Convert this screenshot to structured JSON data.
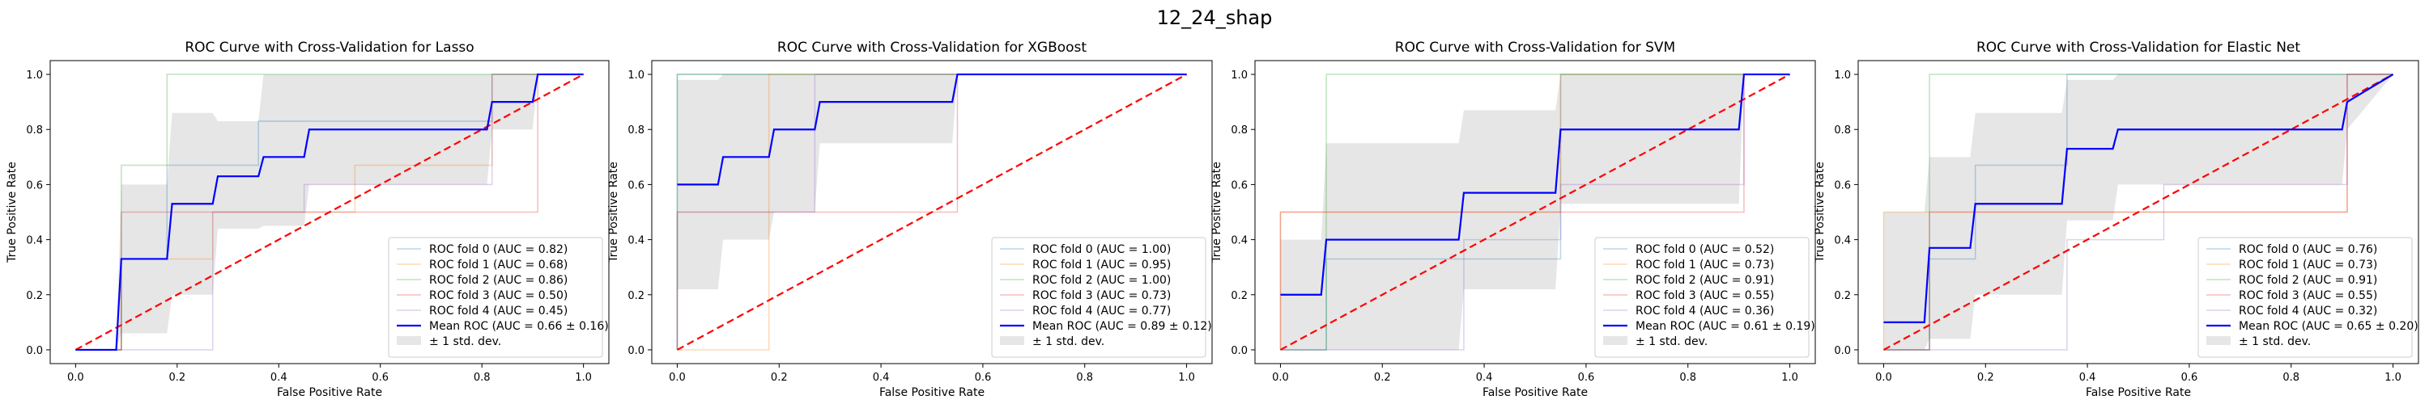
{
  "figure_title": "12_24_shap",
  "chart_data": [
    {
      "type": "line",
      "title": "ROC Curve with Cross-Validation for Lasso",
      "xlabel": "False Positive Rate",
      "ylabel": "True Positive Rate",
      "xlim": [
        -0.05,
        1.05
      ],
      "ylim": [
        -0.05,
        1.05
      ],
      "xticks": [
        "0.0",
        "0.2",
        "0.4",
        "0.6",
        "0.8",
        "1.0"
      ],
      "yticks": [
        "0.0",
        "0.2",
        "0.4",
        "0.6",
        "0.8",
        "1.0"
      ],
      "legend_position": "lower-right",
      "folds": [
        {
          "name": "ROC fold 0 (AUC = 0.82)",
          "color": "#1f77b4",
          "x": [
            0,
            0.09,
            0.09,
            0.18,
            0.18,
            0.36,
            0.36,
            0.82,
            0.82,
            1.0
          ],
          "y": [
            0,
            0,
            0.33,
            0.33,
            0.67,
            0.67,
            0.83,
            0.83,
            1.0,
            1.0
          ]
        },
        {
          "name": "ROC fold 1 (AUC = 0.68)",
          "color": "#ff7f0e",
          "x": [
            0,
            0.09,
            0.09,
            0.27,
            0.27,
            0.55,
            0.55,
            0.82,
            0.82,
            1.0
          ],
          "y": [
            0,
            0,
            0.33,
            0.33,
            0.5,
            0.5,
            0.67,
            0.67,
            1.0,
            1.0
          ]
        },
        {
          "name": "ROC fold 2 (AUC = 0.86)",
          "color": "#2ca02c",
          "x": [
            0,
            0.09,
            0.09,
            0.18,
            0.18,
            1.0
          ],
          "y": [
            0,
            0,
            0.67,
            0.67,
            1.0,
            1.0
          ]
        },
        {
          "name": "ROC fold 3 (AUC = 0.50)",
          "color": "#d62728",
          "x": [
            0,
            0.09,
            0.09,
            0.45,
            0.45,
            0.91,
            0.91,
            1.0
          ],
          "y": [
            0,
            0,
            0.5,
            0.5,
            0.5,
            0.5,
            1.0,
            1.0
          ]
        },
        {
          "name": "ROC fold 4 (AUC = 0.45)",
          "color": "#9467bd",
          "x": [
            0,
            0.27,
            0.27,
            0.45,
            0.45,
            0.82,
            0.82,
            1.0
          ],
          "y": [
            0,
            0,
            0.5,
            0.5,
            0.6,
            0.6,
            1.0,
            1.0
          ]
        }
      ],
      "mean": {
        "name": "Mean ROC (AUC = 0.66 ± 0.16)",
        "color": "#0000ff",
        "x": [
          0,
          0.08,
          0.09,
          0.18,
          0.19,
          0.27,
          0.28,
          0.36,
          0.37,
          0.45,
          0.46,
          0.81,
          0.82,
          0.9,
          0.91,
          1.0
        ],
        "y": [
          0,
          0,
          0.33,
          0.33,
          0.53,
          0.53,
          0.63,
          0.63,
          0.7,
          0.7,
          0.8,
          0.8,
          0.9,
          0.9,
          1.0,
          1.0
        ]
      },
      "band": {
        "name": "± 1 std. dev.",
        "color": "#808080",
        "x": [
          0,
          0.08,
          0.09,
          0.18,
          0.19,
          0.27,
          0.28,
          0.36,
          0.37,
          0.45,
          0.46,
          0.81,
          0.82,
          0.9,
          0.91,
          1.0
        ],
        "upper": [
          0,
          0,
          0.6,
          0.6,
          0.86,
          0.86,
          0.83,
          0.83,
          1.0,
          1.0,
          1.0,
          1.0,
          1.0,
          1.0,
          1.0,
          1.0
        ],
        "lower": [
          0,
          0,
          0.06,
          0.06,
          0.2,
          0.2,
          0.44,
          0.44,
          0.45,
          0.45,
          0.6,
          0.6,
          0.8,
          0.8,
          1.0,
          1.0
        ]
      },
      "chance": {
        "x": [
          0,
          1
        ],
        "y": [
          0,
          1
        ],
        "color": "#ff0000"
      }
    },
    {
      "type": "line",
      "title": "ROC Curve with Cross-Validation for XGBoost",
      "xlabel": "False Positive Rate",
      "ylabel": "True Positive Rate",
      "xlim": [
        -0.05,
        1.05
      ],
      "ylim": [
        -0.05,
        1.05
      ],
      "xticks": [
        "0.0",
        "0.2",
        "0.4",
        "0.6",
        "0.8",
        "1.0"
      ],
      "yticks": [
        "0.0",
        "0.2",
        "0.4",
        "0.6",
        "0.8",
        "1.0"
      ],
      "legend_position": "lower-right",
      "folds": [
        {
          "name": "ROC fold 0 (AUC = 1.00)",
          "color": "#1f77b4",
          "x": [
            0,
            0,
            1.0
          ],
          "y": [
            0,
            1.0,
            1.0
          ]
        },
        {
          "name": "ROC fold 1 (AUC = 0.95)",
          "color": "#ff7f0e",
          "x": [
            0,
            0.18,
            0.18,
            1.0
          ],
          "y": [
            0,
            0,
            1.0,
            1.0
          ]
        },
        {
          "name": "ROC fold 2 (AUC = 1.00)",
          "color": "#2ca02c",
          "x": [
            0,
            0,
            1.0
          ],
          "y": [
            0,
            1.0,
            1.0
          ]
        },
        {
          "name": "ROC fold 3 (AUC = 0.73)",
          "color": "#d62728",
          "x": [
            0,
            0,
            0.09,
            0.09,
            0.55,
            0.55,
            1.0
          ],
          "y": [
            0,
            0.5,
            0.5,
            0.5,
            0.5,
            1.0,
            1.0
          ]
        },
        {
          "name": "ROC fold 4 (AUC = 0.77)",
          "color": "#9467bd",
          "x": [
            0,
            0,
            0.27,
            0.27,
            1.0
          ],
          "y": [
            0,
            0.5,
            0.5,
            1.0,
            1.0
          ]
        }
      ],
      "mean": {
        "name": "Mean ROC (AUC = 0.89 ± 0.12)",
        "color": "#0000ff",
        "x": [
          0,
          0.08,
          0.09,
          0.18,
          0.19,
          0.27,
          0.28,
          0.54,
          0.55,
          1.0
        ],
        "y": [
          0.6,
          0.6,
          0.7,
          0.7,
          0.8,
          0.8,
          0.9,
          0.9,
          1.0,
          1.0
        ]
      },
      "band": {
        "name": "± 1 std. dev.",
        "color": "#808080",
        "x": [
          0,
          0.08,
          0.09,
          0.18,
          0.19,
          0.27,
          0.28,
          0.54,
          0.55,
          1.0
        ],
        "upper": [
          0.98,
          0.98,
          1.0,
          1.0,
          1.0,
          1.0,
          1.0,
          1.0,
          1.0,
          1.0
        ],
        "lower": [
          0.22,
          0.22,
          0.4,
          0.4,
          0.5,
          0.5,
          0.75,
          0.75,
          1.0,
          1.0
        ]
      },
      "chance": {
        "x": [
          0,
          1
        ],
        "y": [
          0,
          1
        ],
        "color": "#ff0000"
      }
    },
    {
      "type": "line",
      "title": "ROC Curve with Cross-Validation for SVM",
      "xlabel": "False Positive Rate",
      "ylabel": "True Positive Rate",
      "xlim": [
        -0.05,
        1.05
      ],
      "ylim": [
        -0.05,
        1.05
      ],
      "xticks": [
        "0.0",
        "0.2",
        "0.4",
        "0.6",
        "0.8",
        "1.0"
      ],
      "yticks": [
        "0.0",
        "0.2",
        "0.4",
        "0.6",
        "0.8",
        "1.0"
      ],
      "legend_position": "lower-right",
      "folds": [
        {
          "name": "ROC fold 0 (AUC = 0.52)",
          "color": "#1f77b4",
          "x": [
            0,
            0.09,
            0.09,
            0.55,
            0.55,
            1.0
          ],
          "y": [
            0,
            0,
            0.33,
            0.33,
            1.0,
            1.0
          ]
        },
        {
          "name": "ROC fold 1 (AUC = 0.73)",
          "color": "#ff7f0e",
          "x": [
            0,
            0,
            0.55,
            0.55,
            1.0
          ],
          "y": [
            0,
            0.5,
            0.5,
            1.0,
            1.0
          ]
        },
        {
          "name": "ROC fold 2 (AUC = 0.91)",
          "color": "#2ca02c",
          "x": [
            0,
            0.09,
            0.09,
            1.0
          ],
          "y": [
            0,
            0,
            1.0,
            1.0
          ]
        },
        {
          "name": "ROC fold 3 (AUC = 0.55)",
          "color": "#d62728",
          "x": [
            0,
            0,
            0.09,
            0.09,
            0.36,
            0.36,
            0.91,
            0.91,
            1.0
          ],
          "y": [
            0,
            0.5,
            0.5,
            0.5,
            0.5,
            0.5,
            0.5,
            1.0,
            1.0
          ]
        },
        {
          "name": "ROC fold 4 (AUC = 0.36)",
          "color": "#9467bd",
          "x": [
            0,
            0.36,
            0.36,
            0.55,
            0.55,
            0.91,
            0.91,
            1.0
          ],
          "y": [
            0,
            0,
            0.4,
            0.4,
            0.6,
            0.6,
            1.0,
            1.0
          ]
        }
      ],
      "mean": {
        "name": "Mean ROC (AUC = 0.61 ± 0.19)",
        "color": "#0000ff",
        "x": [
          0,
          0.08,
          0.09,
          0.35,
          0.36,
          0.54,
          0.55,
          0.9,
          0.91,
          1.0
        ],
        "y": [
          0.2,
          0.2,
          0.4,
          0.4,
          0.57,
          0.57,
          0.8,
          0.8,
          1.0,
          1.0
        ]
      },
      "band": {
        "name": "± 1 std. dev.",
        "color": "#808080",
        "x": [
          0,
          0.08,
          0.09,
          0.35,
          0.36,
          0.54,
          0.55,
          0.9,
          0.91,
          1.0
        ],
        "upper": [
          0.4,
          0.4,
          0.75,
          0.75,
          0.87,
          0.87,
          1.0,
          1.0,
          1.0,
          1.0
        ],
        "lower": [
          0.0,
          0.0,
          0.0,
          0.0,
          0.22,
          0.22,
          0.53,
          0.53,
          1.0,
          1.0
        ]
      },
      "chance": {
        "x": [
          0,
          1
        ],
        "y": [
          0,
          1
        ],
        "color": "#ff0000"
      }
    },
    {
      "type": "line",
      "title": "ROC Curve with Cross-Validation for Elastic Net",
      "xlabel": "False Positive Rate",
      "ylabel": "True Positive Rate",
      "xlim": [
        -0.05,
        1.05
      ],
      "ylim": [
        -0.05,
        1.05
      ],
      "xticks": [
        "0.0",
        "0.2",
        "0.4",
        "0.6",
        "0.8",
        "1.0"
      ],
      "yticks": [
        "0.0",
        "0.2",
        "0.4",
        "0.6",
        "0.8",
        "1.0"
      ],
      "legend_position": "lower-right",
      "folds": [
        {
          "name": "ROC fold 0 (AUC = 0.76)",
          "color": "#1f77b4",
          "x": [
            0,
            0.09,
            0.09,
            0.18,
            0.18,
            0.36,
            0.36,
            1.0
          ],
          "y": [
            0,
            0,
            0.33,
            0.33,
            0.67,
            0.67,
            1.0,
            1.0
          ]
        },
        {
          "name": "ROC fold 1 (AUC = 0.73)",
          "color": "#ff7f0e",
          "x": [
            0,
            0,
            0.36,
            0.36,
            0.91,
            0.91,
            1.0
          ],
          "y": [
            0,
            0.5,
            0.5,
            0.5,
            0.5,
            1.0,
            1.0
          ]
        },
        {
          "name": "ROC fold 2 (AUC = 0.91)",
          "color": "#2ca02c",
          "x": [
            0,
            0.09,
            0.09,
            1.0
          ],
          "y": [
            0,
            0,
            1.0,
            1.0
          ]
        },
        {
          "name": "ROC fold 3 (AUC = 0.55)",
          "color": "#d62728",
          "x": [
            0,
            0.09,
            0.09,
            0.36,
            0.36,
            0.91,
            0.91,
            1.0
          ],
          "y": [
            0,
            0,
            0.5,
            0.5,
            0.5,
            0.5,
            1.0,
            1.0
          ]
        },
        {
          "name": "ROC fold 4 (AUC = 0.32)",
          "color": "#9467bd",
          "x": [
            0,
            0.36,
            0.36,
            0.55,
            0.55,
            0.91,
            0.91,
            1.0
          ],
          "y": [
            0,
            0,
            0.4,
            0.4,
            0.6,
            0.6,
            1.0,
            1.0
          ]
        }
      ],
      "mean": {
        "name": "Mean ROC (AUC = 0.65 ± 0.20)",
        "color": "#0000ff",
        "x": [
          0,
          0.08,
          0.09,
          0.17,
          0.18,
          0.35,
          0.36,
          0.45,
          0.46,
          0.9,
          0.91,
          1.0
        ],
        "y": [
          0.1,
          0.1,
          0.37,
          0.37,
          0.53,
          0.53,
          0.73,
          0.73,
          0.8,
          0.8,
          0.9,
          1.0
        ]
      },
      "band": {
        "name": "± 1 std. dev.",
        "color": "#808080",
        "x": [
          0,
          0.08,
          0.09,
          0.17,
          0.18,
          0.35,
          0.36,
          0.45,
          0.46,
          0.9,
          0.91,
          1.0
        ],
        "upper": [
          0.5,
          0.5,
          0.7,
          0.7,
          0.86,
          0.86,
          0.98,
          0.98,
          1.0,
          1.0,
          1.0,
          1.0
        ],
        "lower": [
          0.0,
          0.0,
          0.04,
          0.04,
          0.2,
          0.2,
          0.47,
          0.47,
          0.6,
          0.6,
          0.8,
          1.0
        ]
      },
      "chance": {
        "x": [
          0,
          1
        ],
        "y": [
          0,
          1
        ],
        "color": "#ff0000"
      }
    }
  ]
}
